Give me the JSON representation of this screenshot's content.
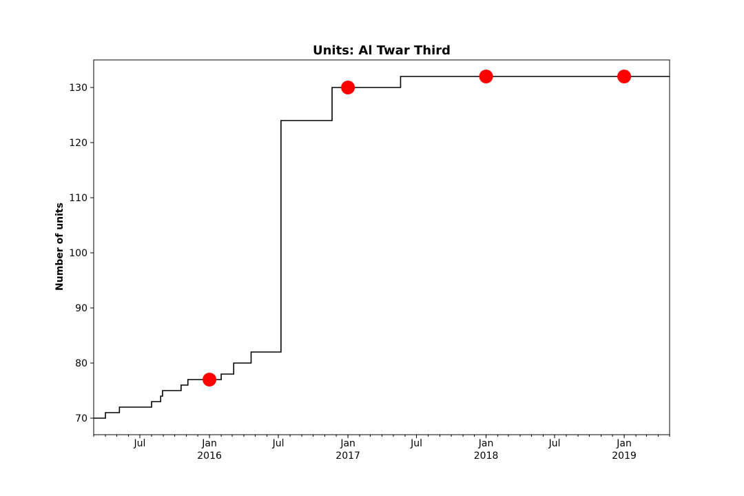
{
  "chart_data": {
    "type": "line",
    "title": "Units: Al Twar Third",
    "xlabel": "",
    "ylabel": "Number of units",
    "xlim": [
      "2015-03-01",
      "2019-05-01"
    ],
    "ylim": [
      67,
      135
    ],
    "grid": false,
    "line_color": "#000000",
    "marker_color": "#ff0000",
    "x_ticks": [
      {
        "date": "2015-07-01",
        "label": "Jul",
        "sublabel": ""
      },
      {
        "date": "2016-01-01",
        "label": "Jan",
        "sublabel": "2016"
      },
      {
        "date": "2016-07-01",
        "label": "Jul",
        "sublabel": ""
      },
      {
        "date": "2017-01-01",
        "label": "Jan",
        "sublabel": "2017"
      },
      {
        "date": "2017-07-01",
        "label": "Jul",
        "sublabel": ""
      },
      {
        "date": "2018-01-01",
        "label": "Jan",
        "sublabel": "2018"
      },
      {
        "date": "2018-07-01",
        "label": "Jul",
        "sublabel": ""
      },
      {
        "date": "2019-01-01",
        "label": "Jan",
        "sublabel": "2019"
      }
    ],
    "y_ticks": [
      70,
      80,
      90,
      100,
      110,
      120,
      130
    ],
    "series": [
      {
        "style": "step",
        "points": [
          {
            "x": "2015-03-01",
            "y": 70
          },
          {
            "x": "2015-04-01",
            "y": 71
          },
          {
            "x": "2015-05-08",
            "y": 72
          },
          {
            "x": "2015-08-01",
            "y": 73
          },
          {
            "x": "2015-08-25",
            "y": 74
          },
          {
            "x": "2015-08-30",
            "y": 75
          },
          {
            "x": "2015-10-18",
            "y": 76
          },
          {
            "x": "2015-11-05",
            "y": 77
          },
          {
            "x": "2016-02-01",
            "y": 78
          },
          {
            "x": "2016-03-05",
            "y": 80
          },
          {
            "x": "2016-04-20",
            "y": 82
          },
          {
            "x": "2016-07-08",
            "y": 124
          },
          {
            "x": "2016-11-20",
            "y": 130
          },
          {
            "x": "2017-05-20",
            "y": 132
          },
          {
            "x": "2019-05-01",
            "y": 132
          }
        ]
      },
      {
        "style": "markers",
        "points": [
          {
            "x": "2016-01-01",
            "y": 77
          },
          {
            "x": "2017-01-01",
            "y": 130
          },
          {
            "x": "2018-01-01",
            "y": 132
          },
          {
            "x": "2019-01-01",
            "y": 132
          }
        ]
      }
    ]
  }
}
